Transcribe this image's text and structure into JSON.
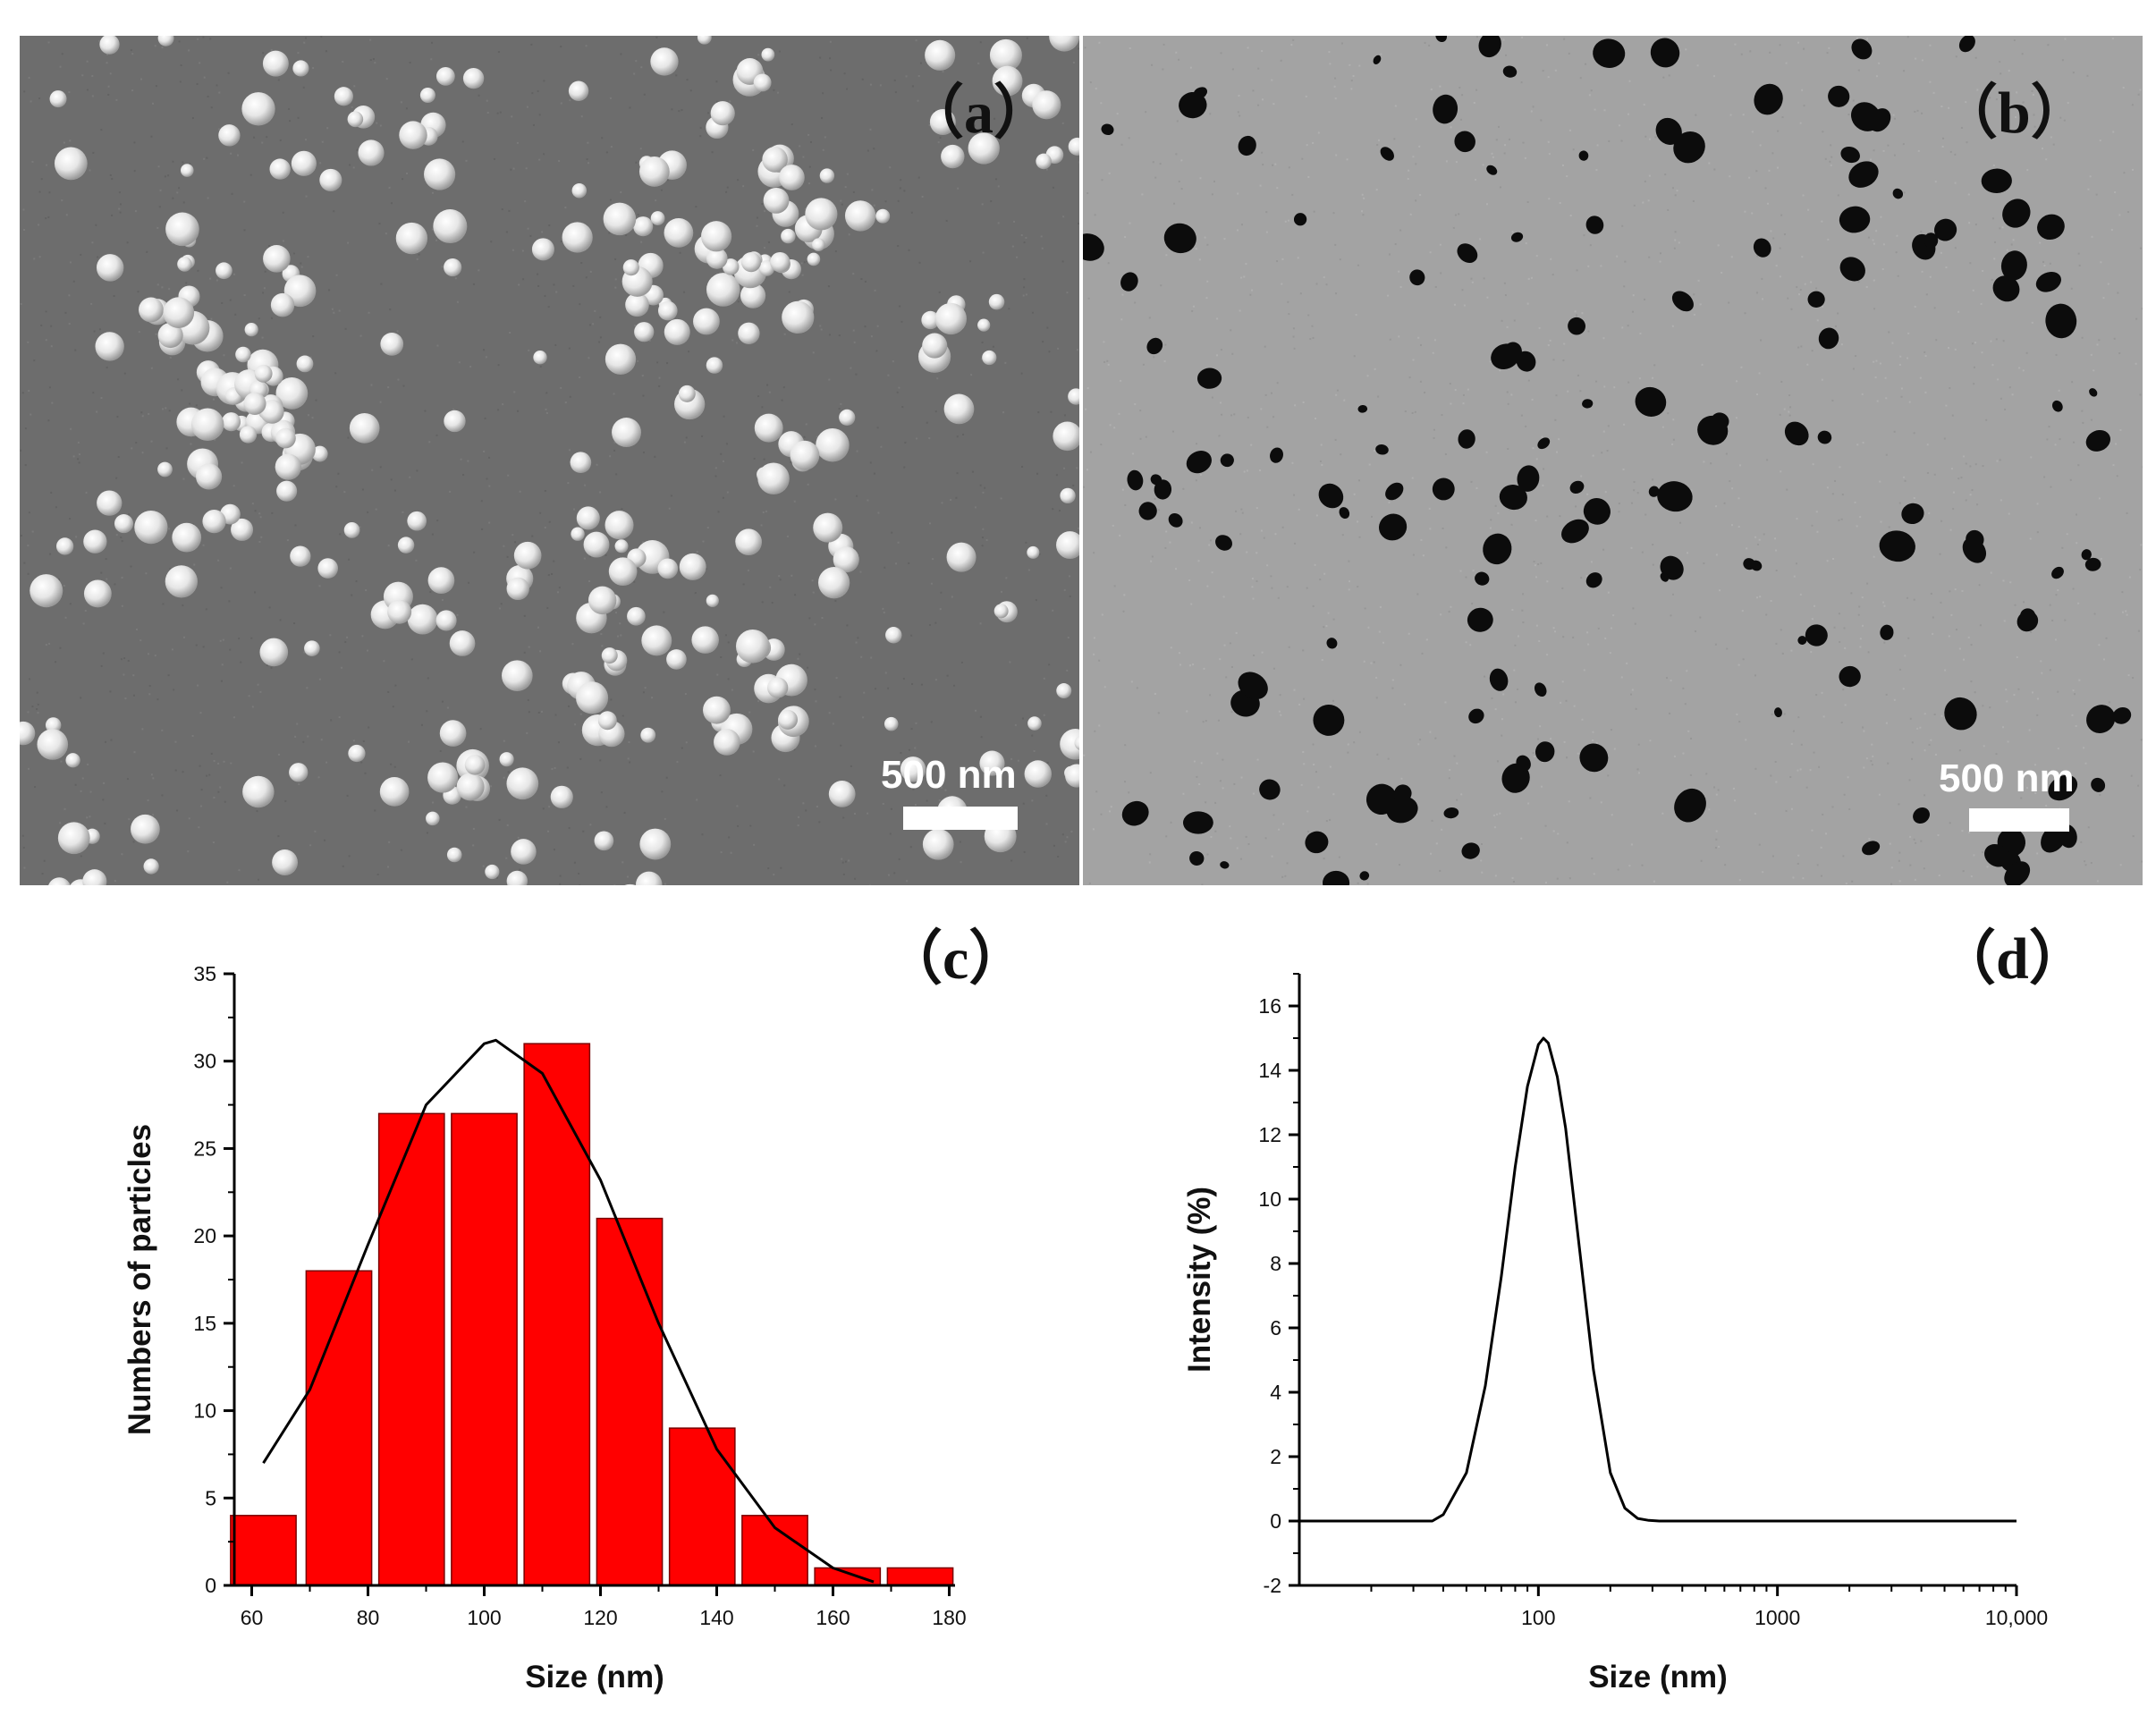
{
  "panels": {
    "a": {
      "label": "（a）",
      "scale_text": "500 nm"
    },
    "b": {
      "label": "（b）",
      "scale_text": "500 nm"
    },
    "c": {
      "label": "（c）"
    },
    "d": {
      "label": "（d）"
    }
  },
  "chart_data": [
    {
      "id": "c",
      "type": "bar",
      "title": "",
      "xlabel": "Size (nm)",
      "ylabel": "Numbers of particles",
      "xlim": [
        57,
        181
      ],
      "ylim": [
        0,
        35
      ],
      "xticks": [
        60,
        80,
        100,
        120,
        140,
        160,
        180
      ],
      "yticks": [
        0,
        5,
        10,
        15,
        20,
        25,
        30,
        35
      ],
      "bin_width": 12.5,
      "bin_centers": [
        62,
        75,
        87.5,
        100,
        112.5,
        125,
        137.5,
        150,
        162.5,
        175
      ],
      "values": [
        4,
        18,
        27,
        27,
        31,
        21,
        9,
        4,
        1,
        1
      ],
      "bar_color": "#ff0000",
      "fit": {
        "type": "gaussian",
        "curve_color": "#000000",
        "x": [
          62,
          70,
          80,
          90,
          100,
          102,
          110,
          120,
          130,
          140,
          150,
          160,
          167
        ],
        "y": [
          7.0,
          11.2,
          19.5,
          27.5,
          31.0,
          31.2,
          29.3,
          23.2,
          15.0,
          7.8,
          3.3,
          1.0,
          0.2
        ]
      }
    },
    {
      "id": "d",
      "type": "line",
      "title": "",
      "xlabel": "Size (nm)",
      "ylabel": "Intensity (%)",
      "xscale": "log",
      "xlim": [
        10,
        10000
      ],
      "ylim": [
        -2,
        17
      ],
      "xticks": [
        100,
        1000,
        10000
      ],
      "xtick_labels": [
        "100",
        "1000",
        "10,000"
      ],
      "yticks": [
        -2,
        0,
        2,
        4,
        6,
        8,
        10,
        12,
        14,
        16
      ],
      "line_color": "#000000",
      "series": [
        {
          "x": [
            10,
            36,
            40,
            50,
            60,
            70,
            80,
            90,
            100,
            105,
            110,
            120,
            130,
            150,
            170,
            200,
            230,
            260,
            290,
            320,
            1000,
            10000
          ],
          "y": [
            0,
            0,
            0.2,
            1.5,
            4.2,
            7.6,
            11.0,
            13.5,
            14.8,
            15.0,
            14.85,
            13.8,
            12.2,
            8.2,
            4.7,
            1.5,
            0.4,
            0.08,
            0.02,
            0,
            0,
            0
          ]
        }
      ]
    }
  ]
}
